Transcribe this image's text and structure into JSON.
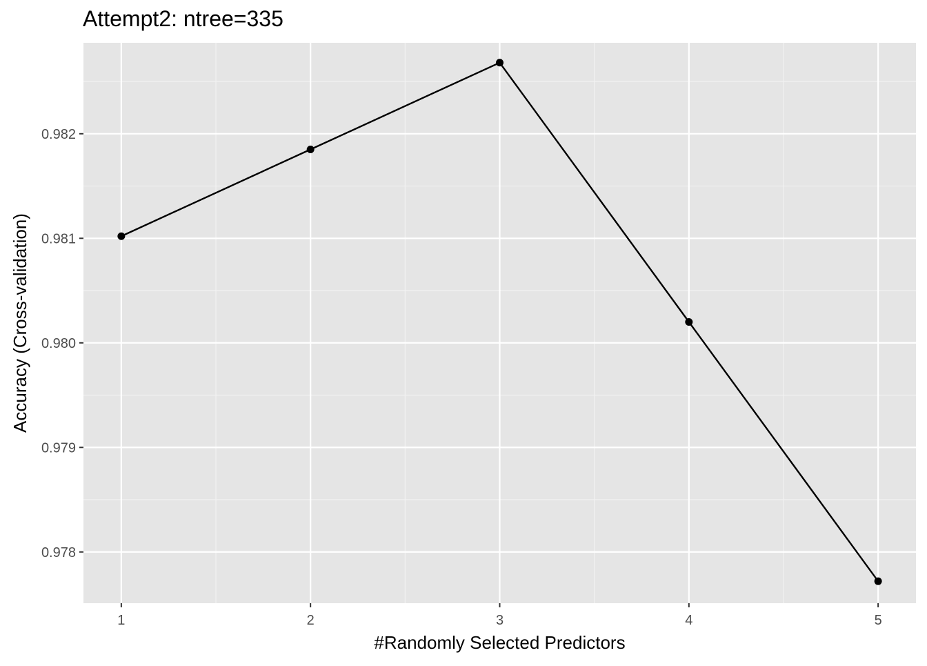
{
  "chart_data": {
    "type": "line",
    "title": "Attempt2: ntree=335",
    "xlabel": "#Randomly Selected Predictors",
    "ylabel": "Accuracy (Cross-validation)",
    "x": [
      1,
      2,
      3,
      4,
      5
    ],
    "series": [
      {
        "values": [
          0.98102,
          0.98185,
          0.98268,
          0.9802,
          0.97772
        ]
      }
    ],
    "x_ticks": [
      1,
      2,
      3,
      4,
      5
    ],
    "x_tick_labels": [
      "1",
      "2",
      "3",
      "4",
      "5"
    ],
    "y_ticks": [
      0.978,
      0.979,
      0.98,
      0.981,
      0.982
    ],
    "y_tick_labels": [
      "0.978",
      "0.979",
      "0.980",
      "0.981",
      "0.982"
    ],
    "xlim": [
      0.8,
      5.2
    ],
    "ylim": [
      0.97751,
      0.98287
    ],
    "grid": true,
    "legend": "none",
    "colors": {
      "panel_background": "#e5e5e5",
      "grid_major": "#ffffff",
      "grid_minor": "#f2f2f2",
      "line": "#000000",
      "point": "#000000",
      "tick_text": "#4d4d4d",
      "title_text": "#000000"
    }
  }
}
